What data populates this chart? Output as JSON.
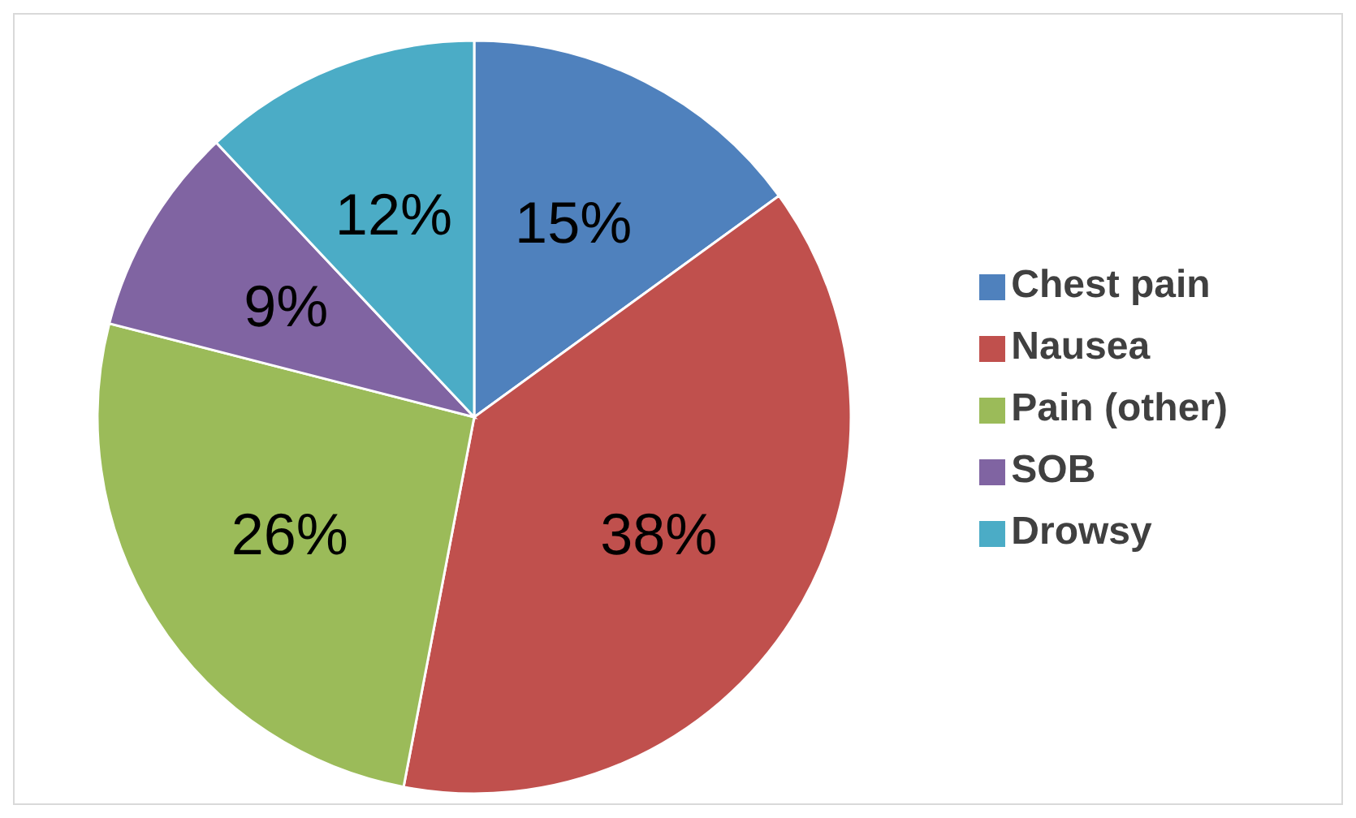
{
  "chart_data": {
    "type": "pie",
    "categories": [
      "Chest pain",
      "Nausea",
      "Pain (other)",
      "SOB",
      "Drowsy"
    ],
    "values": [
      15,
      38,
      26,
      9,
      12
    ],
    "colors": [
      "#4f81bd",
      "#c0504d",
      "#9bbb59",
      "#8064a2",
      "#4bacc6"
    ],
    "value_labels": [
      "15%",
      "38%",
      "26%",
      "9%",
      "12%"
    ],
    "legend": "right"
  }
}
